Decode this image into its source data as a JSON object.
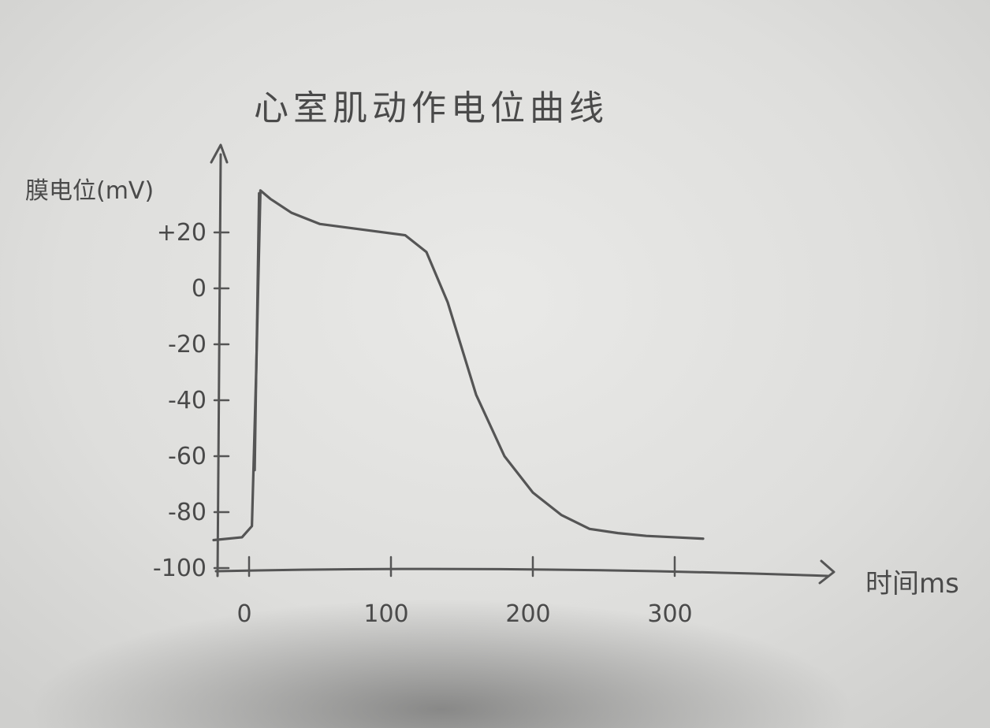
{
  "chart_data": {
    "type": "line",
    "title": "心室肌动作电位曲线",
    "ylabel": "膜电位(mV)",
    "xlabel": "时间ms",
    "ylim": [
      -100,
      40
    ],
    "xlim": [
      -25,
      335
    ],
    "y_ticks": [
      {
        "value": 20,
        "label": "+20"
      },
      {
        "value": 0,
        "label": "0"
      },
      {
        "value": -20,
        "label": "-20"
      },
      {
        "value": -40,
        "label": "-40"
      },
      {
        "value": -60,
        "label": "-60"
      },
      {
        "value": -80,
        "label": "-80"
      },
      {
        "value": -100,
        "label": "-100"
      }
    ],
    "x_ticks": [
      {
        "value": 0,
        "label": "0"
      },
      {
        "value": 100,
        "label": "100"
      },
      {
        "value": 200,
        "label": "200"
      },
      {
        "value": 300,
        "label": "300"
      }
    ],
    "grid": false,
    "series": [
      {
        "x": [
          -25,
          -5,
          2,
          5,
          8,
          15,
          30,
          50,
          80,
          110,
          125,
          140,
          160,
          180,
          200,
          220,
          240,
          260,
          280,
          300,
          320
        ],
        "y": [
          -90,
          -89,
          -85,
          -30,
          35,
          32,
          27,
          23,
          21,
          19,
          13,
          -5,
          -38,
          -60,
          -73,
          -81,
          -86,
          -87.5,
          -88.5,
          -89,
          -89.5
        ]
      }
    ]
  }
}
